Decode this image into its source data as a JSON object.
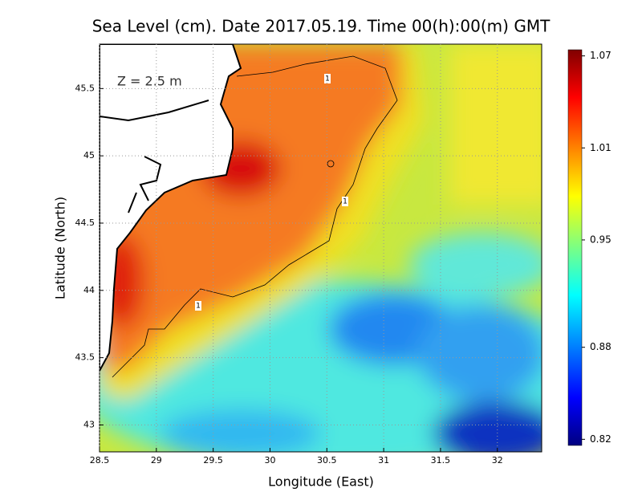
{
  "map": {
    "title": "Sea Level (cm). Date 2017.05.19. Time 00(h):00(m) GMT",
    "depth_label": "Z = 2.5 m",
    "xlabel": "Longitude (East)",
    "ylabel": "Latitude (North)",
    "xlim": [
      28.5,
      32.39
    ],
    "ylim": [
      42.8,
      45.83
    ],
    "xticks": [
      28.5,
      29,
      29.5,
      30,
      30.5,
      31,
      31.5,
      32
    ],
    "yticks": [
      43,
      43.5,
      44,
      44.5,
      45,
      45.5
    ],
    "grid": true,
    "colorbar": {
      "clim": [
        0.816,
        1.074
      ],
      "ticks": [
        0.82,
        0.88,
        0.95,
        1.01,
        1.07
      ]
    },
    "contour_labels": [
      "1",
      "1",
      "1"
    ]
  }
}
